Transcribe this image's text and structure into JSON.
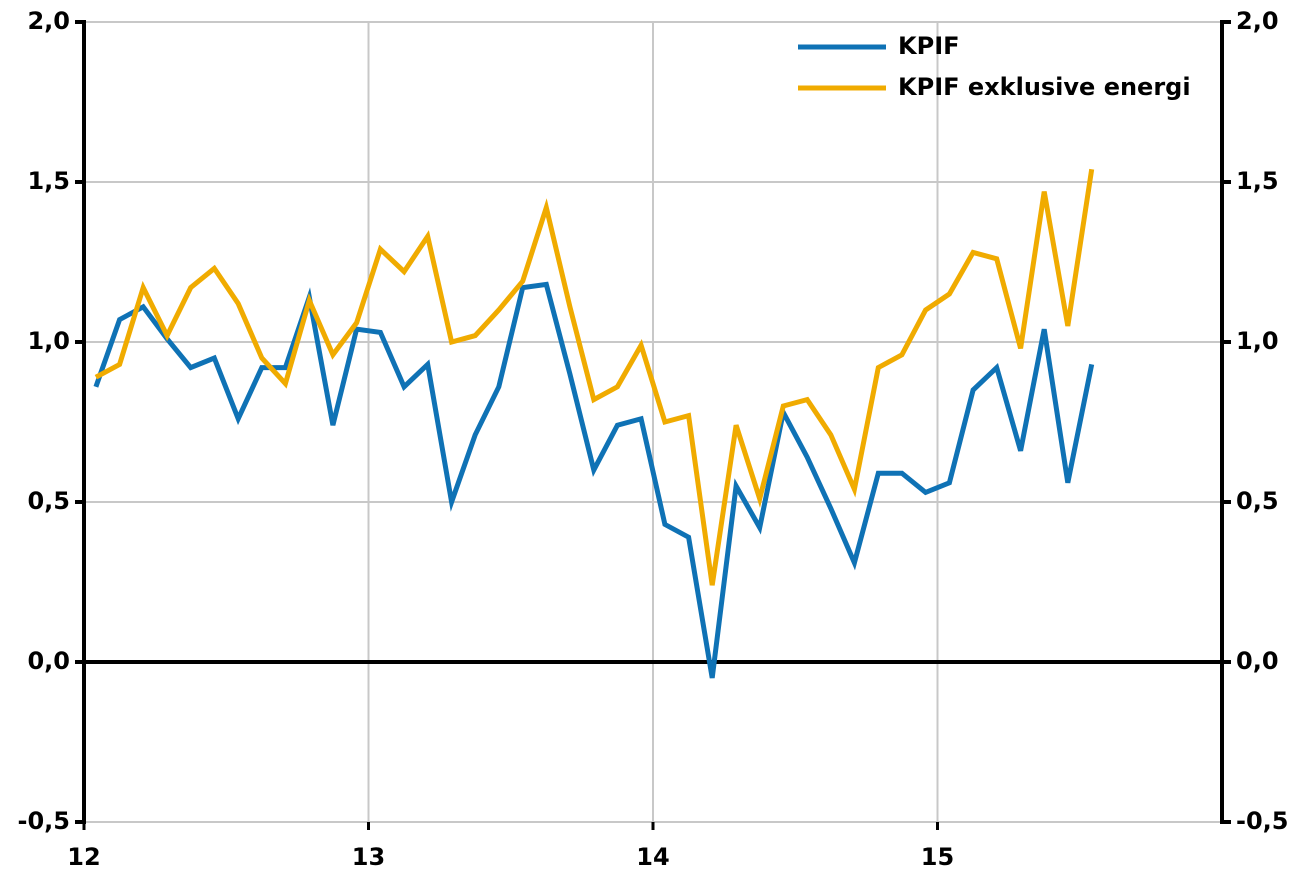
{
  "chart_data": {
    "type": "line",
    "x": [
      12.042,
      12.125,
      12.208,
      12.292,
      12.375,
      12.458,
      12.542,
      12.625,
      12.708,
      12.792,
      12.875,
      12.958,
      13.042,
      13.125,
      13.208,
      13.292,
      13.375,
      13.458,
      13.542,
      13.625,
      13.708,
      13.792,
      13.875,
      13.958,
      14.042,
      14.125,
      14.208,
      14.292,
      14.375,
      14.458,
      14.542,
      14.625,
      14.708,
      14.792,
      14.875,
      14.958,
      15.042,
      15.125,
      15.208,
      15.292,
      15.375,
      15.458,
      15.542
    ],
    "series": [
      {
        "name": "KPIF",
        "color": "#0f72b5",
        "values": [
          0.86,
          1.07,
          1.11,
          1.01,
          0.92,
          0.95,
          0.76,
          0.92,
          0.92,
          1.14,
          0.74,
          1.04,
          1.03,
          0.86,
          0.93,
          0.5,
          0.71,
          0.86,
          1.17,
          1.18,
          0.9,
          0.6,
          0.74,
          0.76,
          0.43,
          0.39,
          -0.05,
          0.55,
          0.42,
          0.78,
          0.64,
          0.48,
          0.31,
          0.59,
          0.59,
          0.53,
          0.56,
          0.85,
          0.92,
          0.66,
          1.04,
          0.56,
          0.93
        ]
      },
      {
        "name": "KPIF exklusive energi",
        "color": "#f0ab00",
        "values": [
          0.89,
          0.93,
          1.17,
          1.02,
          1.17,
          1.23,
          1.12,
          0.95,
          0.87,
          1.13,
          0.96,
          1.06,
          1.29,
          1.22,
          1.33,
          1.0,
          1.02,
          1.1,
          1.19,
          1.42,
          1.11,
          0.82,
          0.86,
          0.99,
          0.75,
          0.77,
          0.24,
          0.74,
          0.51,
          0.8,
          0.82,
          0.71,
          0.54,
          0.92,
          0.96,
          1.1,
          1.15,
          1.28,
          1.26,
          0.98,
          1.47,
          1.05,
          1.54
        ]
      }
    ],
    "xlim": [
      12,
      16
    ],
    "xticks": [
      12,
      13,
      14,
      15
    ],
    "ylim": [
      -0.5,
      2.0
    ],
    "yticks": [
      {
        "value": -0.5,
        "label": "-0,5"
      },
      {
        "value": 0,
        "label": "0,0"
      },
      {
        "value": 0.5,
        "label": "0,5"
      },
      {
        "value": 1.0,
        "label": "1,0"
      },
      {
        "value": 1.5,
        "label": "1,5"
      },
      {
        "value": 2.0,
        "label": "2,0"
      }
    ],
    "y2lim": [
      -0.5,
      2.0
    ],
    "y2ticks": [
      {
        "value": -0.5,
        "label": "-0,5"
      },
      {
        "value": 0,
        "label": "0,0"
      },
      {
        "value": 0.5,
        "label": "0,5"
      },
      {
        "value": 1.0,
        "label": "1,0"
      },
      {
        "value": 1.5,
        "label": "1,5"
      },
      {
        "value": 2.0,
        "label": "2,0"
      }
    ],
    "grid": true,
    "legend": "top-right"
  }
}
